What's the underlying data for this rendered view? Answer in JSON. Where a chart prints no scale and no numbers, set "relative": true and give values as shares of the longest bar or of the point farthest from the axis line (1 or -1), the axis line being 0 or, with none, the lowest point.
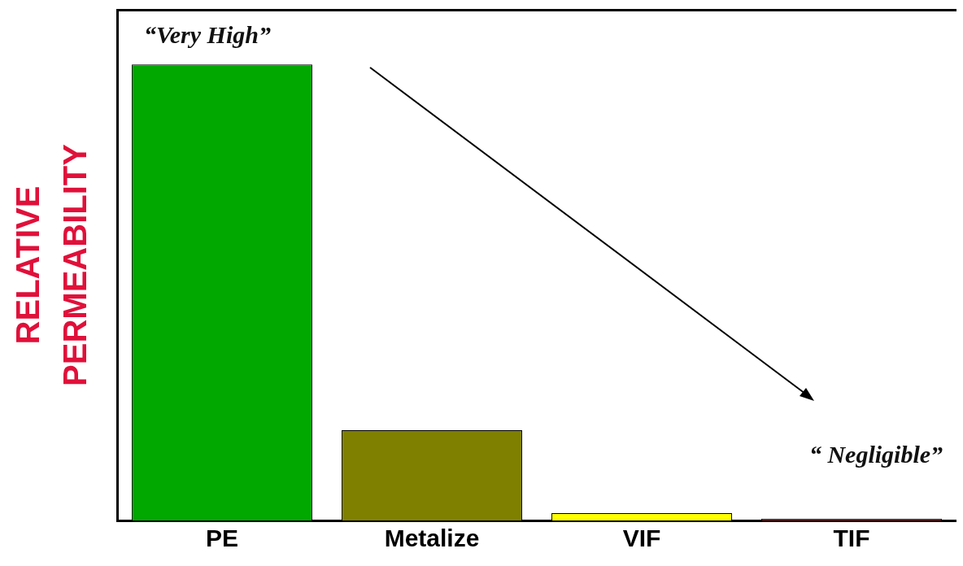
{
  "chart_data": {
    "type": "bar",
    "relative": true,
    "ylabel": "RELATIVE\nPERMEABILITY",
    "categories": [
      "PE",
      "Metalize",
      "VIF",
      "TIF"
    ],
    "values": [
      1,
      0.198,
      0.016,
      0.004
    ],
    "colors": [
      "#00a800",
      "#808000",
      "#ffff00",
      "#8b1a1a"
    ],
    "annotations": [
      "“Very High”",
      "“ Negligible”"
    ],
    "grid": false,
    "legend": false
  }
}
